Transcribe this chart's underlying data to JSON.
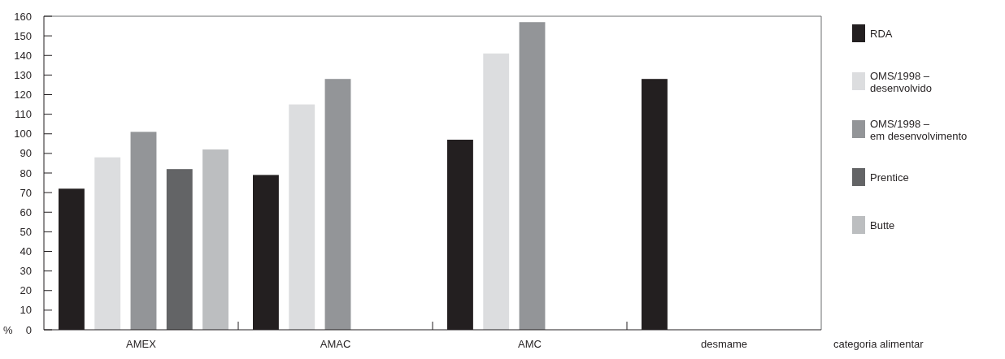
{
  "chart_data": {
    "type": "bar",
    "ylabel": "%",
    "xlabel": "categoria alimentar",
    "categories": [
      "AMEX",
      "AMAC",
      "AMC",
      "desmame"
    ],
    "series": [
      {
        "name": "RDA",
        "color": "#231f20",
        "values": [
          72,
          79,
          97,
          128
        ]
      },
      {
        "name": "OMS/1998 – desenvolvido",
        "color": "#dcdddf",
        "values": [
          88,
          115,
          141,
          null
        ]
      },
      {
        "name": "OMS/1998 – em desenvolvimento",
        "color": "#939598",
        "values": [
          101,
          128,
          157,
          null
        ]
      },
      {
        "name": "Prentice",
        "color": "#636466",
        "values": [
          82,
          null,
          null,
          null
        ]
      },
      {
        "name": "Butte",
        "color": "#bcbec0",
        "values": [
          92,
          null,
          null,
          null
        ]
      }
    ],
    "ylim": [
      0,
      160
    ],
    "yticks": [
      0,
      10,
      20,
      30,
      40,
      50,
      60,
      70,
      80,
      90,
      100,
      110,
      120,
      130,
      140,
      150,
      160
    ],
    "legend": "right",
    "grid": false
  }
}
